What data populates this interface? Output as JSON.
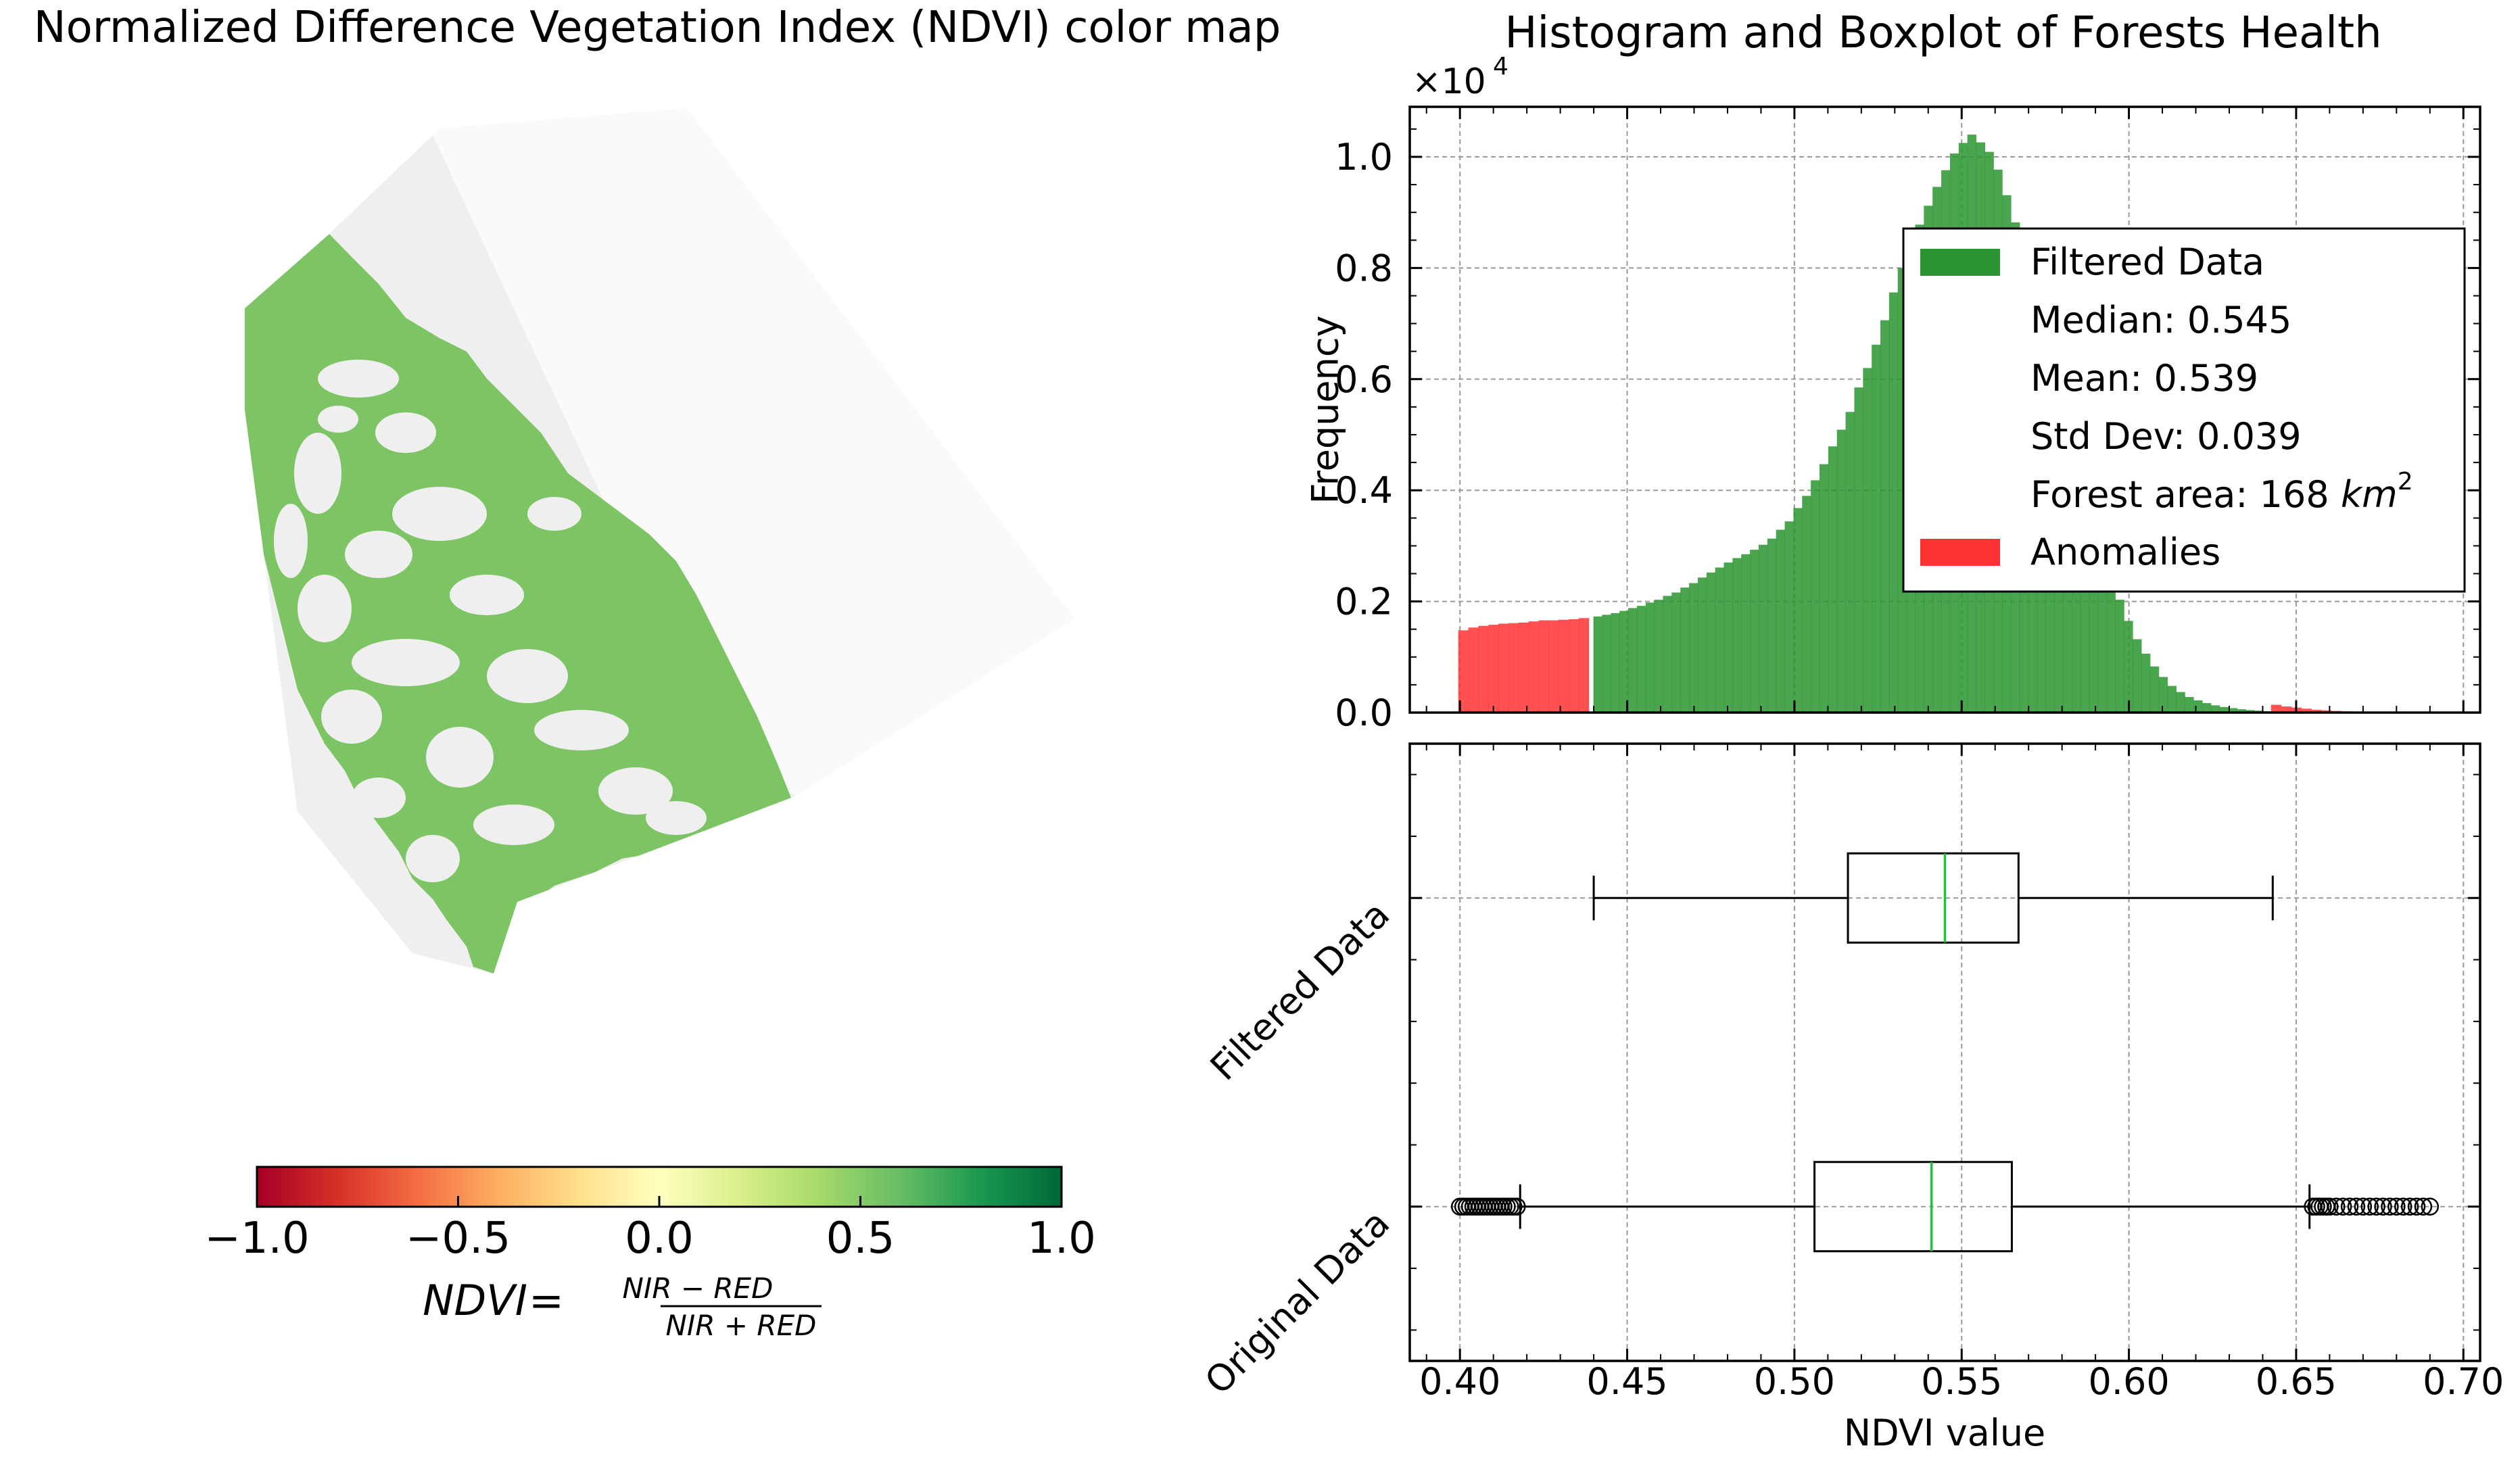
{
  "map_panel": {
    "title": "Normalized Difference Vegetation Index (NDVI) color map",
    "colorbar": {
      "range": [
        -1.0,
        1.0
      ],
      "ticks": [
        "−1.0",
        "−0.5",
        "0.0",
        "0.5",
        "1.0"
      ],
      "colors": [
        "#a50026",
        "#d73027",
        "#f46d43",
        "#fdae61",
        "#fee08b",
        "#ffffbf",
        "#d9ef8b",
        "#a6d96a",
        "#66bd63",
        "#1a9850",
        "#006837"
      ],
      "label_lhs": "NDVI",
      "label_eq": "=",
      "label_numerator": "NIR − RED",
      "label_denominator": "NIR + RED"
    },
    "vegetation_color": "#7cc464",
    "background_color": "#efefef"
  },
  "chart_panel": {
    "title": "Histogram and Boxplot of Forests Health"
  },
  "chart_data": [
    {
      "type": "bar",
      "subtype": "histogram",
      "xlim": [
        0.385,
        0.705
      ],
      "ylim": [
        0,
        10900
      ],
      "y_scale_label": "×10",
      "y_scale_exp": "4",
      "ylabel": "Frequency",
      "xlabel": "",
      "yticks": [
        "0.0",
        "0.2",
        "0.4",
        "0.6",
        "0.8",
        "1.0"
      ],
      "ytick_values": [
        0,
        2000,
        4000,
        6000,
        8000,
        10000
      ],
      "grid": true,
      "legend_placement": "upper right",
      "legend": [
        {
          "kind": "patch",
          "color": "#2a9530",
          "label": "Filtered Data"
        },
        {
          "kind": "text",
          "label": "Median: 0.545"
        },
        {
          "kind": "text",
          "label": "Mean: 0.539"
        },
        {
          "kind": "text",
          "label": "Std Dev: 0.039"
        },
        {
          "kind": "text",
          "label": "Forest area: 168",
          "unit": "km",
          "unit_exp": "2"
        },
        {
          "kind": "patch",
          "color": "#ff3333",
          "label": "Anomalies"
        }
      ],
      "series": [
        {
          "name": "Anomalies",
          "color": "#ff3333",
          "x": [
            0.401,
            0.404,
            0.407,
            0.41,
            0.413,
            0.416,
            0.419,
            0.422,
            0.425,
            0.428,
            0.431,
            0.434,
            0.437,
            0.441,
            0.644,
            0.647,
            0.65,
            0.653,
            0.656,
            0.659,
            0.662,
            0.665
          ],
          "values": [
            1480,
            1530,
            1560,
            1580,
            1600,
            1610,
            1620,
            1640,
            1660,
            1660,
            1670,
            1680,
            1700,
            0,
            140,
            110,
            90,
            70,
            50,
            40,
            30,
            20
          ]
        },
        {
          "name": "Filtered Data",
          "color": "#2a9530",
          "x": [
            0.4412,
            0.4438,
            0.4464,
            0.449,
            0.4516,
            0.4542,
            0.4568,
            0.4594,
            0.462,
            0.4646,
            0.4672,
            0.4698,
            0.4724,
            0.475,
            0.4776,
            0.4802,
            0.4828,
            0.4854,
            0.488,
            0.4906,
            0.4932,
            0.4958,
            0.4984,
            0.501,
            0.5036,
            0.5062,
            0.5088,
            0.5114,
            0.514,
            0.5166,
            0.5192,
            0.5218,
            0.5244,
            0.527,
            0.5296,
            0.5322,
            0.5348,
            0.5374,
            0.54,
            0.5426,
            0.5452,
            0.5478,
            0.5504,
            0.553,
            0.5556,
            0.5582,
            0.5608,
            0.5634,
            0.566,
            0.5686,
            0.5712,
            0.5738,
            0.5764,
            0.579,
            0.5816,
            0.5842,
            0.5868,
            0.5894,
            0.592,
            0.5946,
            0.5972,
            0.5998,
            0.6024,
            0.605,
            0.6076,
            0.6102,
            0.6128,
            0.6154,
            0.618,
            0.6206,
            0.6232,
            0.6258,
            0.6284,
            0.631,
            0.6336,
            0.6362,
            0.6388,
            0.6414
          ],
          "values": [
            1730,
            1760,
            1790,
            1830,
            1880,
            1920,
            1980,
            2030,
            2100,
            2160,
            2250,
            2330,
            2430,
            2520,
            2610,
            2700,
            2780,
            2850,
            2930,
            3020,
            3130,
            3290,
            3440,
            3680,
            3900,
            4180,
            4470,
            4790,
            5090,
            5410,
            5850,
            6200,
            6620,
            7060,
            7560,
            8000,
            8440,
            8780,
            9120,
            9460,
            9760,
            10060,
            10250,
            10400,
            10260,
            10090,
            9770,
            9310,
            8820,
            8310,
            7790,
            7300,
            6810,
            6210,
            5610,
            4900,
            4230,
            3600,
            3020,
            2530,
            2030,
            1650,
            1320,
            1060,
            830,
            640,
            480,
            370,
            280,
            220,
            170,
            130,
            100,
            80,
            60,
            45,
            35,
            25
          ]
        }
      ]
    },
    {
      "type": "boxplot",
      "orientation": "horizontal",
      "xlim": [
        0.385,
        0.705
      ],
      "xticks": [
        "0.40",
        "0.45",
        "0.50",
        "0.55",
        "0.60",
        "0.65",
        "0.70"
      ],
      "xtick_values": [
        0.4,
        0.45,
        0.5,
        0.55,
        0.6,
        0.65,
        0.7
      ],
      "xlabel": "NDVI value",
      "grid": true,
      "median_color": "#20c040",
      "series": [
        {
          "name": "Filtered Data",
          "whisker_low": 0.44,
          "q1": 0.516,
          "median": 0.545,
          "q3": 0.567,
          "whisker_high": 0.643,
          "outliers": []
        },
        {
          "name": "Original Data",
          "whisker_low": 0.418,
          "q1": 0.506,
          "median": 0.541,
          "q3": 0.565,
          "whisker_high": 0.654,
          "outliers": [
            0.4,
            0.401,
            0.402,
            0.403,
            0.404,
            0.405,
            0.406,
            0.407,
            0.408,
            0.409,
            0.41,
            0.411,
            0.412,
            0.413,
            0.414,
            0.415,
            0.416,
            0.417,
            0.655,
            0.656,
            0.657,
            0.658,
            0.659,
            0.66,
            0.662,
            0.664,
            0.666,
            0.668,
            0.67,
            0.672,
            0.674,
            0.676,
            0.678,
            0.68,
            0.682,
            0.684,
            0.686,
            0.688,
            0.69
          ]
        }
      ]
    }
  ]
}
